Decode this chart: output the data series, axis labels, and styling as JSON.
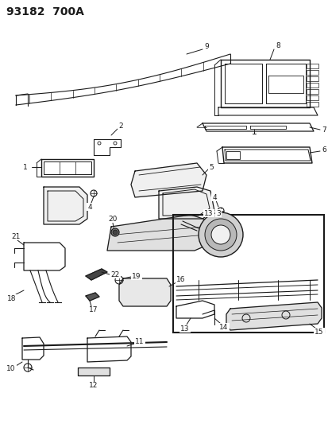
{
  "title": "93182  700A",
  "bg": "#ffffff",
  "lc": "#1a1a1a",
  "fig_w": 4.14,
  "fig_h": 5.33,
  "dpi": 100,
  "title_fs": 10,
  "label_fs": 6.5
}
